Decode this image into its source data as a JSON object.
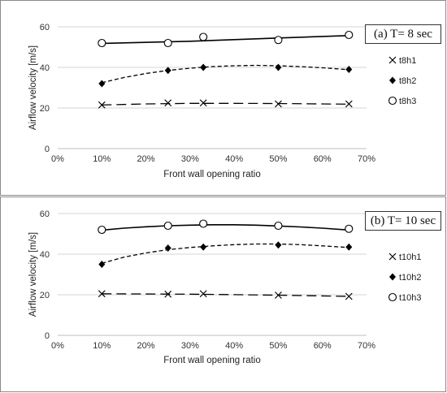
{
  "chart_data": [
    {
      "type": "scatter",
      "panel_label": "(a)  T= 8 sec",
      "xlabel": "Front wall opening ratio",
      "ylabel": "Airflow velocity [m/s]",
      "xlim": [
        0,
        70
      ],
      "ylim": [
        0,
        60
      ],
      "xticks": [
        "0%",
        "10%",
        "20%",
        "30%",
        "40%",
        "50%",
        "60%",
        "70%"
      ],
      "yticks": [
        "0",
        "20",
        "40",
        "60"
      ],
      "grid": "horizontal",
      "legend": "right",
      "x": [
        10,
        25,
        33,
        50,
        66
      ],
      "series": [
        {
          "name": "t8h1",
          "marker": "x",
          "line": "long-dash",
          "values": [
            21.5,
            22.5,
            22.5,
            22.0,
            22.0
          ],
          "trend": [
            [
              10,
              21.5
            ],
            [
              20,
              22.0
            ],
            [
              30,
              22.3
            ],
            [
              40,
              22.3
            ],
            [
              50,
              22.2
            ],
            [
              60,
              22.0
            ],
            [
              66,
              21.9
            ]
          ]
        },
        {
          "name": "t8h2",
          "marker": "diamond",
          "line": "dashed",
          "values": [
            32,
            38.5,
            40,
            40,
            39
          ],
          "trend": [
            [
              10,
              32.5
            ],
            [
              15,
              35.0
            ],
            [
              20,
              37.0
            ],
            [
              25,
              38.5
            ],
            [
              30,
              39.6
            ],
            [
              35,
              40.4
            ],
            [
              40,
              40.8
            ],
            [
              45,
              41.0
            ],
            [
              50,
              40.8
            ],
            [
              55,
              40.4
            ],
            [
              60,
              39.8
            ],
            [
              66,
              38.9
            ]
          ]
        },
        {
          "name": "t8h3",
          "marker": "circle",
          "line": "solid",
          "values": [
            52,
            52,
            55,
            53.5,
            56
          ],
          "trend": [
            [
              10,
              51.8
            ],
            [
              30,
              52.9
            ],
            [
              50,
              54.5
            ],
            [
              66,
              55.7
            ]
          ]
        }
      ]
    },
    {
      "type": "scatter",
      "panel_label": "(b) T= 10 sec",
      "xlabel": "Front wall opening ratio",
      "ylabel": "Airflow velocity [m/s]",
      "xlim": [
        0,
        70
      ],
      "ylim": [
        0,
        60
      ],
      "xticks": [
        "0%",
        "10%",
        "20%",
        "30%",
        "40%",
        "50%",
        "60%",
        "70%"
      ],
      "yticks": [
        "0",
        "20",
        "40",
        "60"
      ],
      "grid": "horizontal",
      "legend": "right",
      "x": [
        10,
        25,
        33,
        50,
        66
      ],
      "series": [
        {
          "name": "t10h1",
          "marker": "x",
          "line": "long-dash",
          "values": [
            20.5,
            20.3,
            20.5,
            19.8,
            19.2
          ],
          "trend": [
            [
              10,
              20.5
            ],
            [
              30,
              20.3
            ],
            [
              50,
              19.8
            ],
            [
              66,
              19.2
            ]
          ]
        },
        {
          "name": "t10h2",
          "marker": "diamond",
          "line": "dashed",
          "values": [
            35,
            43,
            43.5,
            44.5,
            43.5
          ],
          "trend": [
            [
              10,
              35.5
            ],
            [
              15,
              38.5
            ],
            [
              20,
              40.6
            ],
            [
              25,
              42.2
            ],
            [
              30,
              43.3
            ],
            [
              35,
              44.1
            ],
            [
              40,
              44.7
            ],
            [
              45,
              45.0
            ],
            [
              50,
              45.0
            ],
            [
              55,
              44.7
            ],
            [
              60,
              44.1
            ],
            [
              66,
              43.3
            ]
          ]
        },
        {
          "name": "t10h3",
          "marker": "circle",
          "line": "solid",
          "values": [
            52,
            54,
            55,
            54,
            52.5
          ],
          "trend": [
            [
              10,
              51.8
            ],
            [
              15,
              52.8
            ],
            [
              20,
              53.5
            ],
            [
              25,
              54.0
            ],
            [
              30,
              54.3
            ],
            [
              35,
              54.5
            ],
            [
              40,
              54.5
            ],
            [
              45,
              54.3
            ],
            [
              50,
              53.9
            ],
            [
              55,
              53.4
            ],
            [
              60,
              52.8
            ],
            [
              66,
              51.9
            ]
          ]
        }
      ]
    }
  ]
}
